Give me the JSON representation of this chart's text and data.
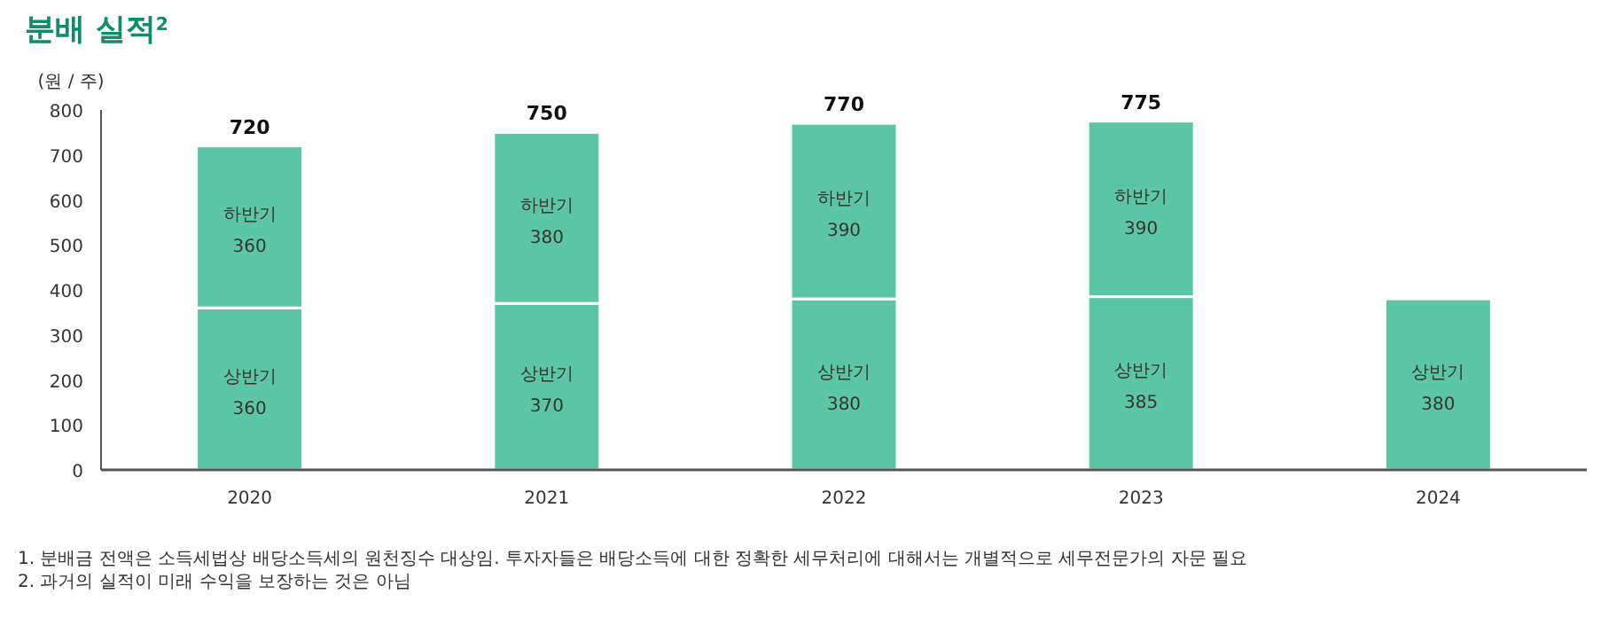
{
  "chart_data": {
    "type": "bar",
    "title": "분배 실적$^{2}$",
    "ylabel": "(원 / 주)",
    "categories": [
      "2020",
      "2021",
      "2022",
      "2023",
      "2024"
    ],
    "stacked": true,
    "series": [
      {
        "name": "상반기",
        "color": "#5cc6a4",
        "values": [
          360,
          370,
          380,
          385,
          380
        ]
      },
      {
        "name": "하반기",
        "color": "#5cc6a4",
        "values": [
          360,
          380,
          390,
          390,
          null
        ]
      }
    ],
    "totals": [
      "720",
      "750",
      "770",
      "775",
      null
    ],
    "data_labels": true,
    "ylim": [
      0,
      800
    ],
    "yticks": [
      0,
      100,
      200,
      300,
      400,
      500,
      600,
      700,
      800
    ],
    "annotations": [
      "1.    분배금 전액은 소득세법상 배당소득세의 원천징수 대상임. 투자자들은 배당소득에 대한 정확한 세무처리에 대해서는 개별적으로 세무전문가의 자문 필요",
      "2.    과거의 실적이 미래 수익을 보장하는 것은 아님"
    ]
  }
}
